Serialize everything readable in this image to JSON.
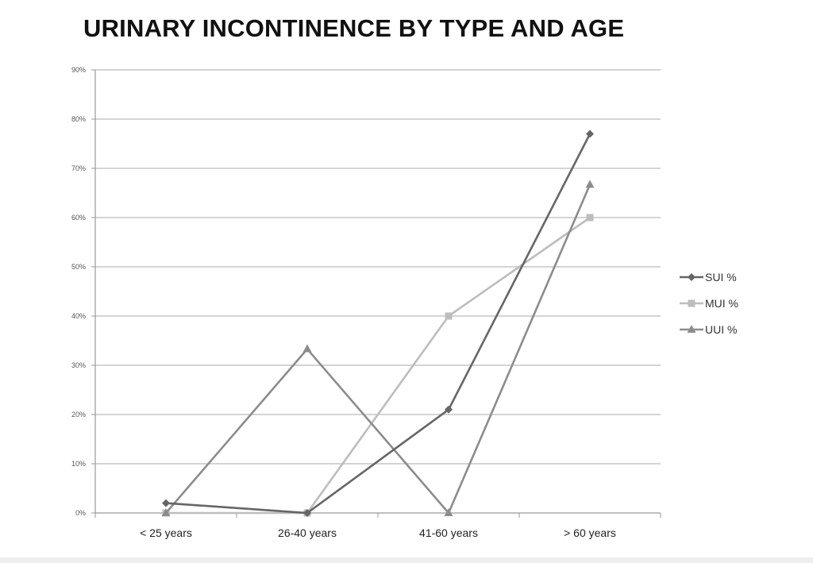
{
  "chart_data": {
    "type": "line",
    "title": "URINARY INCONTINENCE BY TYPE AND AGE",
    "xlabel": "",
    "ylabel": "",
    "categories": [
      "< 25 years",
      "26-40 years",
      "41-60 years",
      "> 60 years"
    ],
    "ylim": [
      0,
      90
    ],
    "yticks": [
      0,
      10,
      20,
      30,
      40,
      50,
      60,
      70,
      80,
      90
    ],
    "ytick_labels": [
      "0%",
      "10%",
      "20%",
      "30%",
      "40%",
      "50%",
      "60%",
      "70%",
      "80%",
      "90%"
    ],
    "grid": true,
    "legend_position": "right",
    "series": [
      {
        "name": "SUI %",
        "values": [
          2,
          0,
          21,
          77
        ],
        "color": "#666666",
        "marker": "diamond"
      },
      {
        "name": "MUI %",
        "values": [
          0,
          0,
          40,
          60
        ],
        "color": "#bdbdbd",
        "marker": "square"
      },
      {
        "name": "UUI %",
        "values": [
          0,
          33.3,
          0,
          66.7
        ],
        "color": "#8c8c8c",
        "marker": "triangle"
      }
    ]
  }
}
